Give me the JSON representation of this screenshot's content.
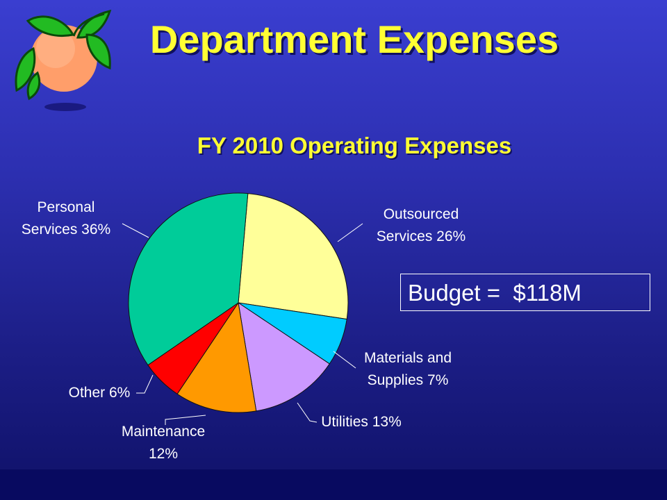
{
  "slide": {
    "title": "Department Expenses",
    "budget_text": "Budget =  $118M"
  },
  "chart_data": {
    "type": "pie",
    "title": "FY 2010 Operating Expenses",
    "start_angle_deg": 5,
    "slices": [
      {
        "name": "Outsourced Services",
        "value": 26,
        "color": "#ffff99",
        "label_lines": [
          "Outsourced",
          "Services 26%"
        ]
      },
      {
        "name": "Materials and Supplies",
        "value": 7,
        "color": "#00ccff",
        "label_lines": [
          "Materials and",
          "Supplies 7%"
        ]
      },
      {
        "name": "Utilities",
        "value": 13,
        "color": "#cc99ff",
        "label_lines": [
          "Utilities 13%"
        ]
      },
      {
        "name": "Maintenance",
        "value": 12,
        "color": "#ff9900",
        "label_lines": [
          "Maintenance",
          "12%"
        ]
      },
      {
        "name": "Other",
        "value": 6,
        "color": "#ff0000",
        "label_lines": [
          "Other 6%"
        ]
      },
      {
        "name": "Personal Services",
        "value": 36,
        "color": "#00cc99",
        "label_lines": [
          "Personal",
          "Services 36%"
        ]
      }
    ],
    "legend": "none"
  },
  "logo": {
    "icon": "peach-with-leaves-icon"
  }
}
